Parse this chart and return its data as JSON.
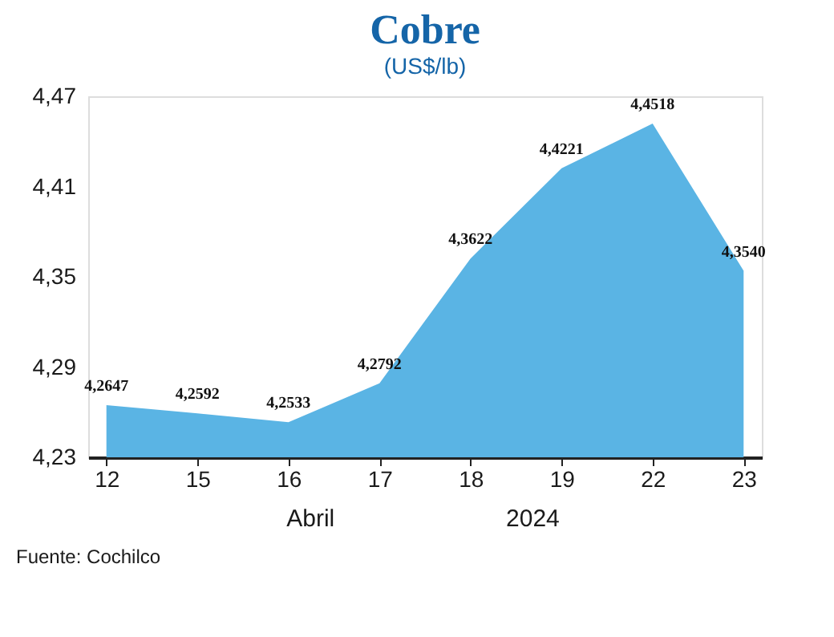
{
  "chart_data": {
    "type": "area",
    "title": "Cobre",
    "subtitle": "(US$/lb)",
    "categories": [
      "12",
      "15",
      "16",
      "17",
      "18",
      "19",
      "22",
      "23"
    ],
    "values": [
      4.2647,
      4.2592,
      4.2533,
      4.2792,
      4.3622,
      4.4221,
      4.4518,
      4.354
    ],
    "value_labels": [
      "4,2647",
      "4,2592",
      "4,2533",
      "4,2792",
      "4,3622",
      "4,4221",
      "4,4518",
      "4,3540"
    ],
    "color": "#5ab4e4",
    "ylim": [
      4.23,
      4.47
    ],
    "yticks": [
      {
        "value": 4.23,
        "label": "4,23"
      },
      {
        "value": 4.29,
        "label": "4,29"
      },
      {
        "value": 4.35,
        "label": "4,35"
      },
      {
        "value": 4.41,
        "label": "4,41"
      },
      {
        "value": 4.47,
        "label": "4,47"
      }
    ],
    "grid": false,
    "annotations": [
      "Abril",
      "2024",
      "Fuente: Cochilco"
    ]
  }
}
